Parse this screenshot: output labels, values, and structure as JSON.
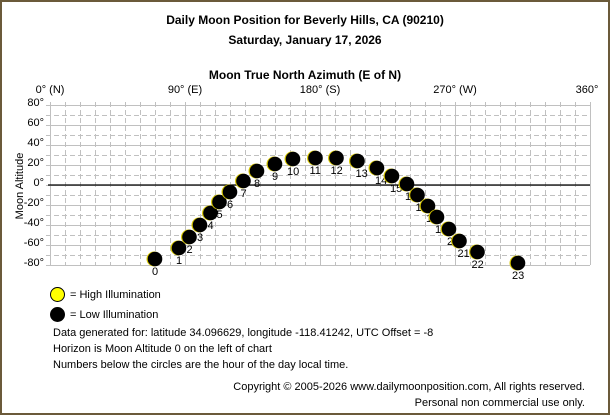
{
  "header": {
    "title": "Daily Moon Position for Beverly Hills, CA (90210)",
    "date": "Saturday, January 17, 2026",
    "axis_title": "Moon True North Azimuth (E of N)"
  },
  "chart_data": {
    "type": "scatter",
    "title": "Daily Moon Position for Beverly Hills, CA (90210)",
    "subtitle": "Saturday, January 17, 2026",
    "xlabel": "Moon True North Azimuth (E of N)",
    "ylabel": "Moon Altitude",
    "xlim": [
      0,
      360
    ],
    "ylim": [
      -80,
      80
    ],
    "x_ticks": [
      "0° (N)",
      "90° (E)",
      "180° (S)",
      "270° (W)",
      "360°"
    ],
    "y_ticks": [
      "80°",
      "60°",
      "40°",
      "20°",
      "0°",
      "-20°",
      "-40°",
      "-60°",
      "-80°"
    ],
    "grid": true,
    "horizon_altitude": 0,
    "series": [
      {
        "name": "Low Illumination",
        "color": "#000000",
        "points": [
          {
            "hour": 0,
            "azimuth": 70,
            "altitude": -74
          },
          {
            "hour": 1,
            "azimuth": 86,
            "altitude": -63
          },
          {
            "hour": 2,
            "azimuth": 93,
            "altitude": -52
          },
          {
            "hour": 3,
            "azimuth": 100,
            "altitude": -40
          },
          {
            "hour": 4,
            "azimuth": 107,
            "altitude": -28
          },
          {
            "hour": 5,
            "azimuth": 113,
            "altitude": -17
          },
          {
            "hour": 6,
            "azimuth": 120,
            "altitude": -7
          },
          {
            "hour": 7,
            "azimuth": 129,
            "altitude": 4
          },
          {
            "hour": 8,
            "azimuth": 138,
            "altitude": 14
          },
          {
            "hour": 9,
            "azimuth": 150,
            "altitude": 21
          },
          {
            "hour": 10,
            "azimuth": 162,
            "altitude": 26
          },
          {
            "hour": 11,
            "azimuth": 177,
            "altitude": 27
          },
          {
            "hour": 12,
            "azimuth": 191,
            "altitude": 27
          },
          {
            "hour": 13,
            "azimuth": 205,
            "altitude": 24
          },
          {
            "hour": 14,
            "azimuth": 218,
            "altitude": 17
          },
          {
            "hour": 15,
            "azimuth": 228,
            "altitude": 9
          },
          {
            "hour": 16,
            "azimuth": 238,
            "altitude": 1
          },
          {
            "hour": 17,
            "azimuth": 245,
            "altitude": -10
          },
          {
            "hour": 18,
            "azimuth": 252,
            "altitude": -21
          },
          {
            "hour": 19,
            "azimuth": 258,
            "altitude": -32
          },
          {
            "hour": 20,
            "azimuth": 266,
            "altitude": -44
          },
          {
            "hour": 21,
            "azimuth": 273,
            "altitude": -56
          },
          {
            "hour": 22,
            "azimuth": 285,
            "altitude": -67
          },
          {
            "hour": 23,
            "azimuth": 312,
            "altitude": -78
          }
        ]
      }
    ],
    "legend": [
      {
        "label": "= High Illumination",
        "color": "#ffff00"
      },
      {
        "label": "= Low Illumination",
        "color": "#000000"
      }
    ],
    "legend_position": "bottom-left"
  },
  "legend": {
    "high": "= High Illumination",
    "low": "= Low Illumination",
    "high_color": "#ffff00",
    "low_color": "#000000"
  },
  "notes": {
    "line1": "Data generated for: latitude 34.096629, longitude -118.41242, UTC Offset = -8",
    "line2": "Horizon is Moon Altitude 0 on the left of chart",
    "line3": "Numbers below the circles are the hour of the day local time."
  },
  "footer": {
    "copyright": "Copyright © 2005-2026 www.dailymoonposition.com, All rights reserved.",
    "usage": "Personal non commercial use only."
  }
}
